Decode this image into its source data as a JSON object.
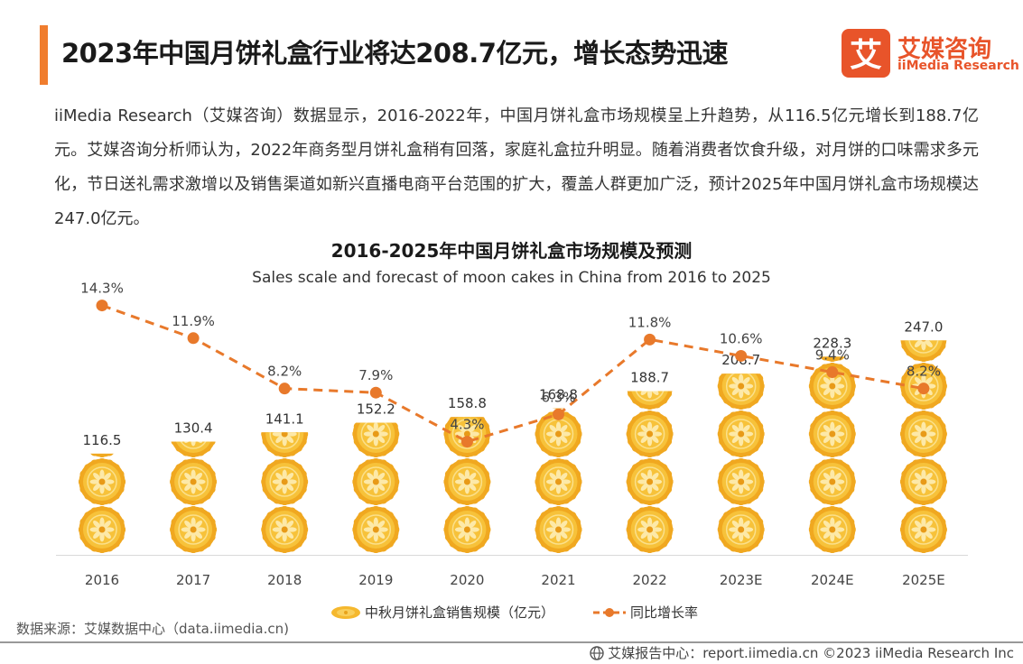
{
  "header": {
    "headline": "2023年中国月饼礼盒行业将达208.7亿元，增长态势迅速",
    "logo_cn": "艾媒咨询",
    "logo_en": "iiMedia Research",
    "logo_mark": "艾"
  },
  "intro": {
    "text": "iiMedia Research（艾媒咨询）数据显示，2016-2022年，中国月饼礼盒市场规模呈上升趋势，从116.5亿元增长到188.7亿元。艾媒咨询分析师认为，2022年商务型月饼礼盒稍有回落，家庭礼盒拉升明显。随着消费者饮食升级，对月饼的口味需求多元化，节日送礼需求激增以及销售渠道如新兴直播电商平台范围的扩大，覆盖人群更加广泛，预计2025年中国月饼礼盒市场规模达247.0亿元。"
  },
  "chart_data": {
    "type": "bar",
    "title": "2016-2025年中国月饼礼盒市场规模及预测",
    "subtitle": "Sales scale and forecast of moon cakes in China from 2016 to 2025",
    "categories": [
      "2016",
      "2017",
      "2018",
      "2019",
      "2020",
      "2021",
      "2022",
      "2023E",
      "2024E",
      "2025E"
    ],
    "series": [
      {
        "name": "中秋月饼礼盒销售规模（亿元）",
        "type": "pictorial-bar",
        "values": [
          116.5,
          130.4,
          141.1,
          152.2,
          158.8,
          168.8,
          188.7,
          208.7,
          228.3,
          247.0
        ],
        "value_labels": [
          "116.5",
          "130.4",
          "141.1",
          "152.2",
          "158.8",
          "168.8",
          "188.7",
          "208.7",
          "228.3",
          "247.0"
        ],
        "color": "#f5b82e"
      },
      {
        "name": "同比增长率",
        "type": "line",
        "style": "dashed",
        "values": [
          14.3,
          11.9,
          8.2,
          7.9,
          4.3,
          6.3,
          11.8,
          10.6,
          9.4,
          8.2
        ],
        "value_labels": [
          "14.3%",
          "11.9%",
          "8.2%",
          "7.9%",
          "4.3%",
          "6.3%",
          "11.8%",
          "10.6%",
          "9.4%",
          "8.2%"
        ],
        "color": "#e8792b"
      }
    ],
    "legend_position": "bottom-center",
    "grid": false
  },
  "footer": {
    "source": "数据来源：艾媒数据中心（data.iimedia.cn)",
    "copyright": "艾媒报告中心：report.iimedia.cn  ©2023  iiMedia Research  Inc"
  },
  "colors": {
    "accent": "#f07d2e",
    "brand": "#e8542a",
    "mooncake": "#f5b82e",
    "line": "#e8792b"
  }
}
